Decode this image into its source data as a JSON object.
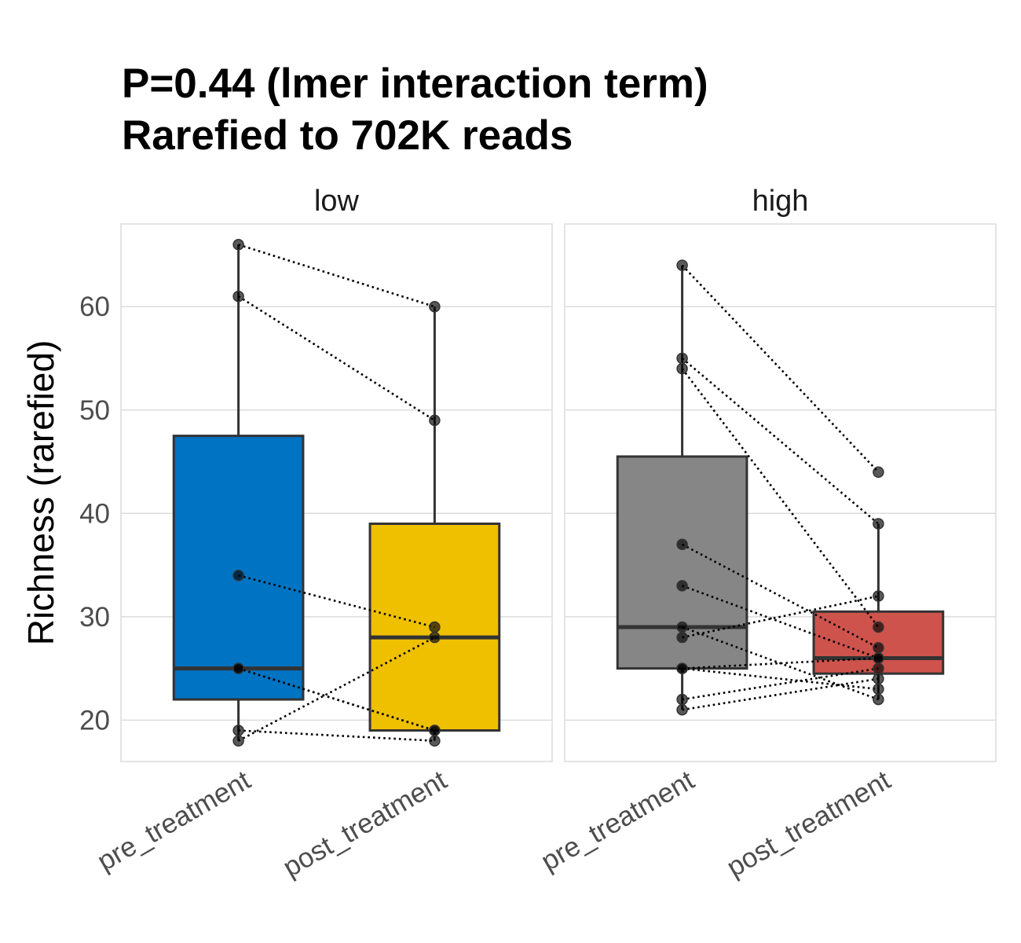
{
  "chart_data": {
    "type": "box",
    "title": [
      "P=0.44 (lmer interaction term)",
      "Rarefied to 702K reads"
    ],
    "xlabel": "",
    "ylabel": "Richness (rarefied)",
    "ylim": [
      16,
      68
    ],
    "yticks": [
      20,
      30,
      40,
      50,
      60
    ],
    "grid": true,
    "legend": "none",
    "categories": [
      "pre_treatment",
      "post_treatment"
    ],
    "panels": [
      {
        "label": "low",
        "boxes": [
          {
            "category": "pre_treatment",
            "color": "#0073C2",
            "q1": 22,
            "median": 25,
            "q3": 47.5,
            "whisker_low": 18,
            "whisker_high": 66
          },
          {
            "category": "post_treatment",
            "color": "#EFC000",
            "q1": 19,
            "median": 28,
            "q3": 39,
            "whisker_low": 18,
            "whisker_high": 60
          }
        ],
        "pairs": [
          [
            66,
            60
          ],
          [
            61,
            49
          ],
          [
            34,
            29
          ],
          [
            25,
            19
          ],
          [
            25,
            19
          ],
          [
            19,
            18
          ],
          [
            18,
            28
          ]
        ]
      },
      {
        "label": "high",
        "boxes": [
          {
            "category": "pre_treatment",
            "color": "#868686",
            "q1": 25,
            "median": 29,
            "q3": 45.5,
            "whisker_low": 21,
            "whisker_high": 64
          },
          {
            "category": "post_treatment",
            "color": "#CD534C",
            "q1": 24.5,
            "median": 26,
            "q3": 30.5,
            "whisker_low": 22,
            "whisker_high": 39
          }
        ],
        "pairs": [
          [
            64,
            44
          ],
          [
            55,
            39
          ],
          [
            54,
            29
          ],
          [
            37,
            27
          ],
          [
            33,
            26
          ],
          [
            29,
            22
          ],
          [
            28,
            32
          ],
          [
            25,
            26
          ],
          [
            25,
            23
          ],
          [
            22,
            25
          ],
          [
            21,
            24
          ]
        ]
      }
    ]
  }
}
